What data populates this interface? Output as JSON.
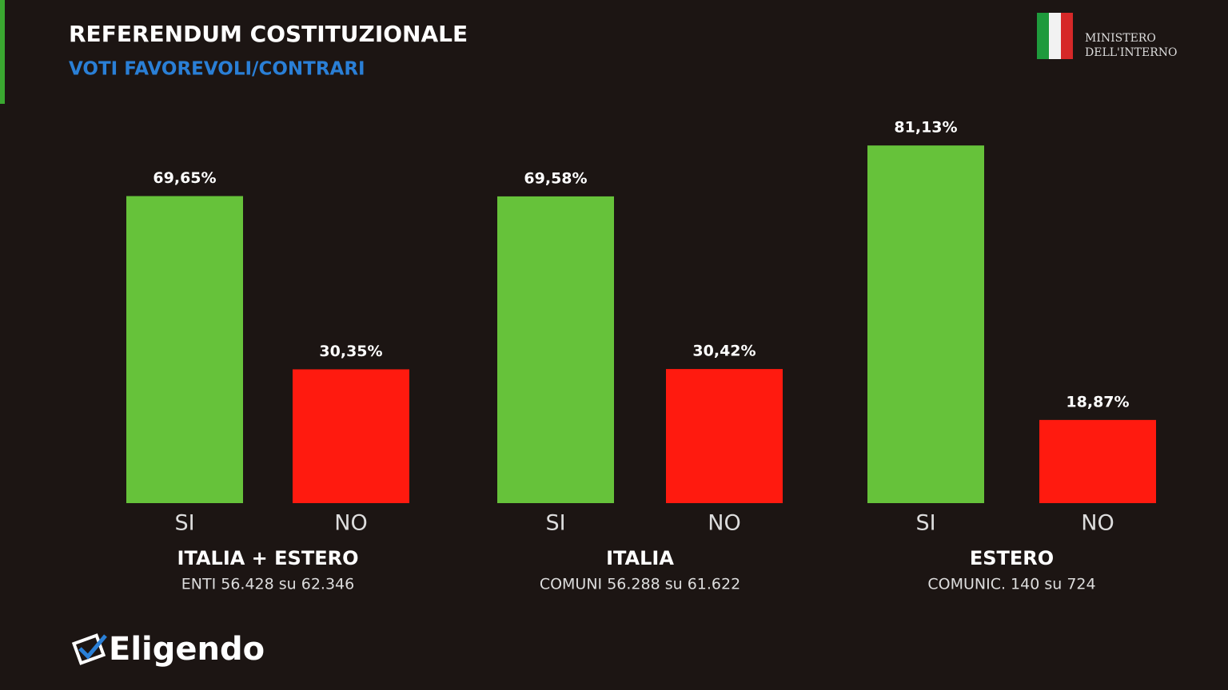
{
  "header": {
    "title": "REFERENDUM COSTITUZIONALE",
    "subtitle": "VOTI FAVOREVOLI/CONTRARI"
  },
  "ministry": [
    "MINISTERO",
    "DELL'INTERNO"
  ],
  "brand": "Eligendo",
  "chart_data": [
    {
      "type": "bar",
      "title": "ITALIA + ESTERO",
      "subtitle": "ENTI 56.428 su 62.346",
      "categories": [
        "SI",
        "NO"
      ],
      "values": [
        69.65,
        30.35
      ],
      "value_labels": [
        "69,65%",
        "30,35%"
      ],
      "colors": [
        "#66c23a",
        "#ff1a0f"
      ]
    },
    {
      "type": "bar",
      "title": "ITALIA",
      "subtitle": "COMUNI 56.288 su 61.622",
      "categories": [
        "SI",
        "NO"
      ],
      "values": [
        69.58,
        30.42
      ],
      "value_labels": [
        "69,58%",
        "30,42%"
      ],
      "colors": [
        "#66c23a",
        "#ff1a0f"
      ]
    },
    {
      "type": "bar",
      "title": "ESTERO",
      "subtitle": "COMUNIC. 140 su 724",
      "categories": [
        "SI",
        "NO"
      ],
      "values": [
        81.13,
        18.87
      ],
      "value_labels": [
        "81,13%",
        "18,87%"
      ],
      "colors": [
        "#66c23a",
        "#ff1a0f"
      ]
    }
  ]
}
